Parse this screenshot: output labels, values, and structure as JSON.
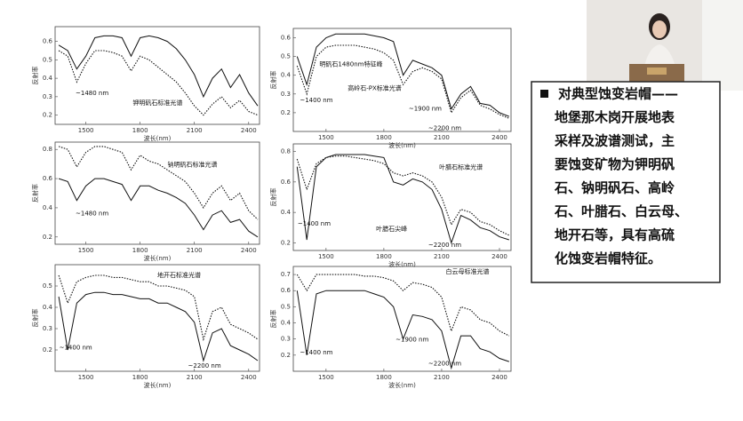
{
  "chart_data": [
    {
      "type": "line",
      "ylabel": "反射率",
      "xlabel": "波长(nm)",
      "xlim": [
        1330,
        2460
      ],
      "xticks": [
        1500,
        1800,
        2100,
        2400
      ],
      "ylim": [
        0.15,
        0.68
      ],
      "yticks": [
        0.2,
        0.3,
        0.4,
        0.5,
        0.6
      ],
      "x": [
        1350,
        1400,
        1450,
        1500,
        1550,
        1600,
        1650,
        1700,
        1750,
        1800,
        1850,
        1900,
        1950,
        2000,
        2050,
        2100,
        2150,
        2200,
        2250,
        2300,
        2350,
        2400,
        2450
      ],
      "series": [
        {
          "color": "#111111",
          "dash": "solid",
          "values": [
            0.58,
            0.55,
            0.45,
            0.52,
            0.62,
            0.63,
            0.63,
            0.62,
            0.52,
            0.62,
            0.63,
            0.62,
            0.6,
            0.56,
            0.5,
            0.42,
            0.3,
            0.4,
            0.45,
            0.35,
            0.42,
            0.32,
            0.25
          ]
        },
        {
          "color": "#111111",
          "dash": "dotted",
          "values": [
            0.55,
            0.52,
            0.38,
            0.48,
            0.55,
            0.55,
            0.54,
            0.52,
            0.44,
            0.52,
            0.5,
            0.46,
            0.42,
            0.38,
            0.32,
            0.25,
            0.2,
            0.26,
            0.3,
            0.24,
            0.28,
            0.22,
            0.2
          ]
        }
      ],
      "annotations": [
        "~1480 nm",
        "钾明矾石标准光谱"
      ]
    },
    {
      "type": "line",
      "ylabel": "反射率",
      "xlabel": "波长(nm)",
      "xlim": [
        1330,
        2460
      ],
      "xticks": [
        1500,
        1800,
        2100,
        2400
      ],
      "ylim": [
        0.15,
        0.85
      ],
      "yticks": [
        0.2,
        0.4,
        0.6,
        0.8
      ],
      "x": [
        1350,
        1400,
        1450,
        1500,
        1550,
        1600,
        1650,
        1700,
        1750,
        1800,
        1850,
        1900,
        1950,
        2000,
        2050,
        2100,
        2150,
        2200,
        2250,
        2300,
        2350,
        2400,
        2450
      ],
      "series": [
        {
          "color": "#111111",
          "dash": "dotted",
          "values": [
            0.82,
            0.8,
            0.68,
            0.78,
            0.82,
            0.82,
            0.8,
            0.78,
            0.66,
            0.76,
            0.72,
            0.7,
            0.66,
            0.62,
            0.58,
            0.5,
            0.4,
            0.5,
            0.55,
            0.45,
            0.5,
            0.38,
            0.32
          ]
        },
        {
          "color": "#111111",
          "dash": "solid",
          "values": [
            0.6,
            0.58,
            0.45,
            0.55,
            0.6,
            0.6,
            0.58,
            0.56,
            0.45,
            0.55,
            0.55,
            0.52,
            0.5,
            0.47,
            0.43,
            0.35,
            0.25,
            0.35,
            0.38,
            0.3,
            0.32,
            0.24,
            0.2
          ]
        }
      ],
      "annotations": [
        "钠明矾石标准光谱",
        "~1480 nm"
      ]
    },
    {
      "type": "line",
      "ylabel": "反射率",
      "xlabel": "波长(nm)",
      "xlim": [
        1330,
        2460
      ],
      "xticks": [
        1500,
        1800,
        2100,
        2400
      ],
      "ylim": [
        0.1,
        0.6
      ],
      "yticks": [
        0.2,
        0.3,
        0.4,
        0.5
      ],
      "x": [
        1350,
        1400,
        1450,
        1500,
        1550,
        1600,
        1650,
        1700,
        1750,
        1800,
        1850,
        1900,
        1950,
        2000,
        2050,
        2100,
        2150,
        2200,
        2250,
        2300,
        2350,
        2400,
        2450
      ],
      "series": [
        {
          "color": "#111111",
          "dash": "dotted",
          "values": [
            0.55,
            0.42,
            0.52,
            0.54,
            0.55,
            0.55,
            0.54,
            0.54,
            0.53,
            0.52,
            0.52,
            0.5,
            0.5,
            0.49,
            0.48,
            0.45,
            0.25,
            0.38,
            0.4,
            0.32,
            0.3,
            0.28,
            0.25
          ]
        },
        {
          "color": "#111111",
          "dash": "solid",
          "values": [
            0.45,
            0.2,
            0.42,
            0.46,
            0.47,
            0.47,
            0.46,
            0.46,
            0.45,
            0.44,
            0.44,
            0.42,
            0.42,
            0.4,
            0.38,
            0.33,
            0.15,
            0.28,
            0.3,
            0.22,
            0.2,
            0.18,
            0.15
          ]
        }
      ],
      "annotations": [
        "地开石标准光谱",
        "~1400 nm",
        "~2200 nm"
      ]
    },
    {
      "type": "line",
      "ylabel": "反射率",
      "xlabel": "波长(nm)",
      "xlim": [
        1330,
        2460
      ],
      "xticks": [
        1500,
        1800,
        2100,
        2400
      ],
      "ylim": [
        0.1,
        0.65
      ],
      "yticks": [
        0.2,
        0.3,
        0.4,
        0.5,
        0.6
      ],
      "x": [
        1350,
        1400,
        1450,
        1500,
        1550,
        1600,
        1650,
        1700,
        1750,
        1800,
        1850,
        1900,
        1950,
        2000,
        2050,
        2100,
        2150,
        2200,
        2250,
        2300,
        2350,
        2400,
        2450
      ],
      "series": [
        {
          "color": "#111111",
          "dash": "solid",
          "values": [
            0.5,
            0.35,
            0.55,
            0.6,
            0.62,
            0.62,
            0.62,
            0.62,
            0.61,
            0.6,
            0.58,
            0.4,
            0.48,
            0.46,
            0.44,
            0.4,
            0.22,
            0.3,
            0.34,
            0.25,
            0.24,
            0.2,
            0.18
          ]
        },
        {
          "color": "#111111",
          "dash": "dotted",
          "values": [
            0.45,
            0.3,
            0.5,
            0.55,
            0.56,
            0.56,
            0.56,
            0.55,
            0.54,
            0.52,
            0.48,
            0.35,
            0.42,
            0.44,
            0.42,
            0.38,
            0.2,
            0.28,
            0.32,
            0.24,
            0.22,
            0.19,
            0.17
          ]
        }
      ],
      "annotations": [
        "明矾石1480nm特征峰",
        "高岭石-PX标准光谱",
        "~1400 nm",
        "~1900 nm",
        "~2200 nm"
      ]
    },
    {
      "type": "line",
      "ylabel": "反射率",
      "xlabel": "波长(nm)",
      "xlim": [
        1330,
        2460
      ],
      "xticks": [
        1500,
        1800,
        2100,
        2400
      ],
      "ylim": [
        0.15,
        0.85
      ],
      "yticks": [
        0.2,
        0.4,
        0.6,
        0.8
      ],
      "x": [
        1350,
        1400,
        1450,
        1500,
        1550,
        1600,
        1650,
        1700,
        1750,
        1800,
        1850,
        1900,
        1950,
        2000,
        2050,
        2100,
        2150,
        2200,
        2250,
        2300,
        2350,
        2400,
        2450
      ],
      "series": [
        {
          "color": "#111111",
          "dash": "solid",
          "values": [
            0.7,
            0.22,
            0.7,
            0.76,
            0.78,
            0.78,
            0.78,
            0.78,
            0.77,
            0.76,
            0.6,
            0.58,
            0.62,
            0.6,
            0.55,
            0.42,
            0.2,
            0.38,
            0.35,
            0.3,
            0.28,
            0.24,
            0.22
          ]
        },
        {
          "color": "#111111",
          "dash": "dotted",
          "values": [
            0.75,
            0.55,
            0.72,
            0.76,
            0.77,
            0.77,
            0.76,
            0.75,
            0.74,
            0.72,
            0.66,
            0.64,
            0.66,
            0.64,
            0.6,
            0.5,
            0.32,
            0.42,
            0.4,
            0.34,
            0.32,
            0.28,
            0.25
          ]
        }
      ],
      "annotations": [
        "叶腊石标准光谱",
        "叶腊石尖峰",
        "~1400 nm",
        "~2200 nm"
      ]
    },
    {
      "type": "line",
      "ylabel": "反射率",
      "xlabel": "波长(nm)",
      "xlim": [
        1330,
        2460
      ],
      "xticks": [
        1500,
        1800,
        2100,
        2400
      ],
      "ylim": [
        0.1,
        0.75
      ],
      "yticks": [
        0.2,
        0.3,
        0.4,
        0.5,
        0.6,
        0.7
      ],
      "x": [
        1350,
        1400,
        1450,
        1500,
        1550,
        1600,
        1650,
        1700,
        1750,
        1800,
        1850,
        1900,
        1950,
        2000,
        2050,
        2100,
        2150,
        2200,
        2250,
        2300,
        2350,
        2400,
        2450
      ],
      "series": [
        {
          "color": "#111111",
          "dash": "dotted",
          "values": [
            0.7,
            0.6,
            0.7,
            0.7,
            0.7,
            0.7,
            0.7,
            0.69,
            0.69,
            0.68,
            0.66,
            0.6,
            0.65,
            0.64,
            0.62,
            0.56,
            0.35,
            0.5,
            0.48,
            0.42,
            0.4,
            0.35,
            0.32
          ]
        },
        {
          "color": "#111111",
          "dash": "solid",
          "values": [
            0.6,
            0.2,
            0.58,
            0.6,
            0.6,
            0.6,
            0.6,
            0.6,
            0.58,
            0.56,
            0.5,
            0.3,
            0.45,
            0.44,
            0.42,
            0.35,
            0.12,
            0.32,
            0.32,
            0.24,
            0.22,
            0.18,
            0.16
          ]
        }
      ],
      "annotations": [
        "白云母标准光谱",
        "~1400 nm",
        "~1900 nm",
        "~2200 nm"
      ]
    }
  ],
  "text_box": {
    "lines": [
      "对典型蚀变岩帽——",
      "地堡那木岗开展地表",
      "采样及波谱测试，主",
      "要蚀变矿物为钾明矾",
      "石、钠明矾石、高岭",
      "石、叶腊石、白云母、",
      "地开石等，具有高硫",
      "化蚀变岩帽特征。"
    ]
  }
}
